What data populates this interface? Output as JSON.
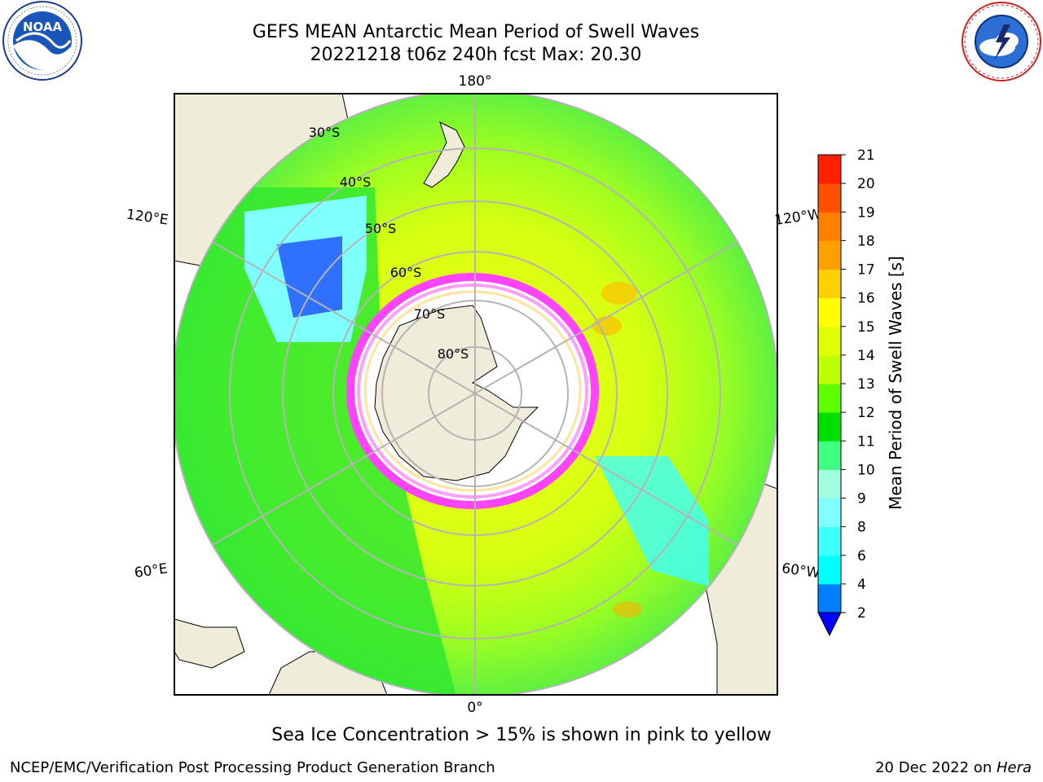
{
  "header": {
    "title_line1": "GEFS MEAN Antarctic Mean Period of Swell Waves",
    "title_line2": "20221218 t06z 240h fcst   Max: 20.30"
  },
  "logos": {
    "left": "NOAA",
    "right": "NATIONAL WEATHER SERVICE"
  },
  "map": {
    "projection": "south-polar-stereographic",
    "longitude_labels": [
      "180°",
      "120°E",
      "120°W",
      "60°E",
      "60°W",
      "0°"
    ],
    "latitude_labels": [
      "30°S",
      "40°S",
      "50°S",
      "60°S",
      "70°S",
      "80°S"
    ],
    "land_color": "#efecd9",
    "ice_colors": [
      "#ff44ff",
      "#ffa0ff",
      "#ffe4a0",
      "#ffffff"
    ]
  },
  "colorbar": {
    "label": "Mean Period of Swell Waves [s]",
    "ticks": [
      "2",
      "4",
      "6",
      "8",
      "9",
      "10",
      "11",
      "12",
      "13",
      "14",
      "15",
      "16",
      "17",
      "18",
      "19",
      "20",
      "21"
    ],
    "colors": [
      "#0000ff",
      "#0080ff",
      "#00ffff",
      "#40ffff",
      "#80ffff",
      "#a0ffe0",
      "#40ff80",
      "#00e000",
      "#60ff00",
      "#c0ff00",
      "#e0ff00",
      "#ffff00",
      "#ffd000",
      "#ffa000",
      "#ff8000",
      "#ff5000",
      "#ff2000",
      "#ff0000"
    ],
    "extend": "min"
  },
  "caption": "Sea Ice Concentration > 15% is shown in pink to yellow",
  "footer": {
    "left": "NCEP/EMC/Verification Post Processing Product Generation Branch",
    "right_prefix": "20 Dec 2022 on ",
    "right_host": "Hera"
  }
}
